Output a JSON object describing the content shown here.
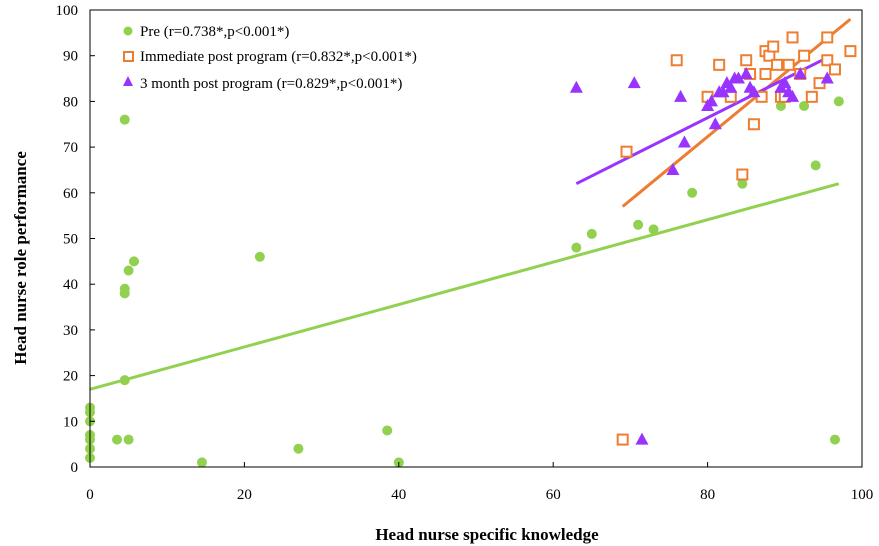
{
  "chart_data": {
    "type": "scatter",
    "title": "",
    "xlabel": "Head nurse specific knowledge",
    "ylabel": "Head nurse role performance",
    "xlim": [
      0,
      100
    ],
    "ylim": [
      0,
      100
    ],
    "xticks": [
      "0",
      "20",
      "40",
      "60",
      "80",
      "100"
    ],
    "yticks": [
      "0",
      "10",
      "20",
      "30",
      "40",
      "50",
      "60",
      "70",
      "80",
      "90",
      "100"
    ],
    "grid": false,
    "legend_position": "top-left",
    "series": [
      {
        "name": "Pre (r=0.738*,p<0.001*)",
        "marker": "circle",
        "color": "#92d050",
        "points": [
          [
            0,
            13
          ],
          [
            0,
            12
          ],
          [
            0,
            10
          ],
          [
            0,
            7
          ],
          [
            0,
            6
          ],
          [
            0,
            4
          ],
          [
            0,
            2
          ],
          [
            3.5,
            6
          ],
          [
            4.5,
            76
          ],
          [
            4.5,
            39
          ],
          [
            4.5,
            38
          ],
          [
            4.5,
            19
          ],
          [
            5,
            43
          ],
          [
            5,
            6
          ],
          [
            5.7,
            45
          ],
          [
            14.5,
            1
          ],
          [
            22,
            46
          ],
          [
            27,
            4
          ],
          [
            38.5,
            8
          ],
          [
            40,
            1
          ],
          [
            63,
            48
          ],
          [
            65,
            51
          ],
          [
            71,
            53
          ],
          [
            73,
            52
          ],
          [
            78,
            60
          ],
          [
            84.5,
            62
          ],
          [
            89.5,
            79
          ],
          [
            92.5,
            79
          ],
          [
            94,
            66
          ],
          [
            96.5,
            6
          ],
          [
            97,
            80
          ]
        ],
        "fit": {
          "x": [
            0,
            97
          ],
          "y": [
            17,
            62
          ]
        }
      },
      {
        "name": "Immediate post program (r=0.832*,p<0.001*)",
        "marker": "square",
        "color": "#ed7d31",
        "points": [
          [
            69,
            6
          ],
          [
            69.5,
            69
          ],
          [
            76,
            89
          ],
          [
            80,
            81
          ],
          [
            81.5,
            88
          ],
          [
            83,
            81
          ],
          [
            84.5,
            64
          ],
          [
            85,
            89
          ],
          [
            85.5,
            86
          ],
          [
            86,
            75
          ],
          [
            87,
            81
          ],
          [
            87.5,
            86
          ],
          [
            87.5,
            91
          ],
          [
            88,
            90
          ],
          [
            88.5,
            92
          ],
          [
            89,
            88
          ],
          [
            89.5,
            81
          ],
          [
            90,
            81
          ],
          [
            90.5,
            88
          ],
          [
            91,
            94
          ],
          [
            92,
            86
          ],
          [
            92.5,
            90
          ],
          [
            93.5,
            81
          ],
          [
            94.5,
            84
          ],
          [
            95.5,
            89
          ],
          [
            95.5,
            94
          ],
          [
            96.5,
            87
          ],
          [
            98.5,
            91
          ]
        ],
        "fit": {
          "x": [
            69,
            98.5
          ],
          "y": [
            57,
            98
          ]
        }
      },
      {
        "name": "3 month post program (r=0.829*,p<0.001*)",
        "marker": "triangle",
        "color": "#9933ff",
        "points": [
          [
            63,
            83
          ],
          [
            70.5,
            84
          ],
          [
            71.5,
            6
          ],
          [
            75.5,
            65
          ],
          [
            76.5,
            81
          ],
          [
            77,
            71
          ],
          [
            80,
            79
          ],
          [
            80.5,
            80
          ],
          [
            81,
            75
          ],
          [
            81.5,
            82
          ],
          [
            82,
            82
          ],
          [
            82.5,
            84
          ],
          [
            83,
            83
          ],
          [
            83.5,
            85
          ],
          [
            84,
            85
          ],
          [
            85,
            86
          ],
          [
            85.5,
            83
          ],
          [
            86,
            82
          ],
          [
            89.5,
            83
          ],
          [
            90,
            84
          ],
          [
            90.5,
            82
          ],
          [
            91,
            81
          ],
          [
            92,
            86
          ],
          [
            95.5,
            85
          ]
        ],
        "fit": {
          "x": [
            63,
            96
          ],
          "y": [
            62,
            90
          ]
        }
      }
    ]
  }
}
